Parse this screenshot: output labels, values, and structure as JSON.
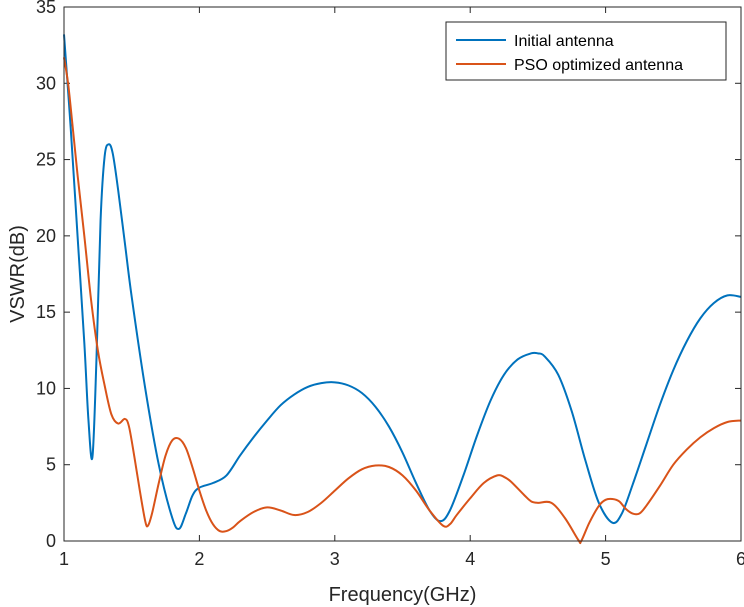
{
  "chart_data": {
    "type": "line",
    "title": "",
    "xlabel": "Frequency(GHz)",
    "ylabel": "VSWR(dB)",
    "xlim": [
      1,
      6
    ],
    "ylim": [
      0,
      35
    ],
    "xticks": [
      1,
      2,
      3,
      4,
      5,
      6
    ],
    "yticks": [
      0,
      5,
      10,
      15,
      20,
      25,
      30,
      35
    ],
    "grid": false,
    "legend_position": "top-right",
    "series": [
      {
        "name": "Initial antenna",
        "color": "#0072BD",
        "points": [
          [
            1.0,
            33.2
          ],
          [
            1.05,
            27.0
          ],
          [
            1.1,
            20.0
          ],
          [
            1.15,
            13.0
          ],
          [
            1.18,
            8.0
          ],
          [
            1.21,
            5.5
          ],
          [
            1.24,
            12.0
          ],
          [
            1.27,
            21.0
          ],
          [
            1.3,
            25.2
          ],
          [
            1.33,
            26.0
          ],
          [
            1.36,
            25.4
          ],
          [
            1.4,
            23.0
          ],
          [
            1.45,
            19.5
          ],
          [
            1.5,
            16.0
          ],
          [
            1.6,
            10.0
          ],
          [
            1.7,
            5.0
          ],
          [
            1.8,
            1.5
          ],
          [
            1.85,
            0.8
          ],
          [
            1.9,
            1.8
          ],
          [
            1.95,
            3.0
          ],
          [
            2.0,
            3.5
          ],
          [
            2.1,
            3.8
          ],
          [
            2.2,
            4.3
          ],
          [
            2.3,
            5.6
          ],
          [
            2.4,
            6.8
          ],
          [
            2.5,
            7.9
          ],
          [
            2.6,
            8.9
          ],
          [
            2.7,
            9.6
          ],
          [
            2.8,
            10.1
          ],
          [
            2.9,
            10.35
          ],
          [
            3.0,
            10.4
          ],
          [
            3.1,
            10.2
          ],
          [
            3.2,
            9.7
          ],
          [
            3.3,
            8.8
          ],
          [
            3.4,
            7.5
          ],
          [
            3.5,
            5.8
          ],
          [
            3.6,
            3.8
          ],
          [
            3.7,
            2.0
          ],
          [
            3.78,
            1.3
          ],
          [
            3.85,
            2.0
          ],
          [
            3.95,
            4.3
          ],
          [
            4.05,
            6.9
          ],
          [
            4.15,
            9.2
          ],
          [
            4.25,
            10.9
          ],
          [
            4.35,
            11.9
          ],
          [
            4.45,
            12.3
          ],
          [
            4.5,
            12.3
          ],
          [
            4.55,
            12.1
          ],
          [
            4.65,
            10.9
          ],
          [
            4.75,
            8.5
          ],
          [
            4.85,
            5.3
          ],
          [
            4.95,
            2.5
          ],
          [
            5.05,
            1.2
          ],
          [
            5.12,
            1.8
          ],
          [
            5.2,
            3.7
          ],
          [
            5.3,
            6.3
          ],
          [
            5.4,
            8.9
          ],
          [
            5.5,
            11.2
          ],
          [
            5.6,
            13.1
          ],
          [
            5.7,
            14.6
          ],
          [
            5.8,
            15.6
          ],
          [
            5.9,
            16.1
          ],
          [
            6.0,
            16.0
          ]
        ]
      },
      {
        "name": "PSO optimized antenna",
        "color": "#D95319",
        "points": [
          [
            1.0,
            31.7
          ],
          [
            1.03,
            30.0
          ],
          [
            1.06,
            27.5
          ],
          [
            1.1,
            24.0
          ],
          [
            1.15,
            20.0
          ],
          [
            1.2,
            15.8
          ],
          [
            1.25,
            12.5
          ],
          [
            1.3,
            10.2
          ],
          [
            1.35,
            8.3
          ],
          [
            1.4,
            7.7
          ],
          [
            1.45,
            8.0
          ],
          [
            1.48,
            7.5
          ],
          [
            1.52,
            5.5
          ],
          [
            1.56,
            3.3
          ],
          [
            1.6,
            1.3
          ],
          [
            1.62,
            1.0
          ],
          [
            1.65,
            1.8
          ],
          [
            1.7,
            3.8
          ],
          [
            1.75,
            5.6
          ],
          [
            1.8,
            6.6
          ],
          [
            1.85,
            6.7
          ],
          [
            1.9,
            6.1
          ],
          [
            1.95,
            4.8
          ],
          [
            2.0,
            3.3
          ],
          [
            2.05,
            2.0
          ],
          [
            2.1,
            1.1
          ],
          [
            2.15,
            0.65
          ],
          [
            2.2,
            0.65
          ],
          [
            2.25,
            0.9
          ],
          [
            2.3,
            1.3
          ],
          [
            2.4,
            1.9
          ],
          [
            2.5,
            2.2
          ],
          [
            2.6,
            2.0
          ],
          [
            2.7,
            1.7
          ],
          [
            2.8,
            1.9
          ],
          [
            2.9,
            2.5
          ],
          [
            3.0,
            3.3
          ],
          [
            3.1,
            4.1
          ],
          [
            3.2,
            4.7
          ],
          [
            3.3,
            4.95
          ],
          [
            3.4,
            4.85
          ],
          [
            3.5,
            4.3
          ],
          [
            3.6,
            3.3
          ],
          [
            3.7,
            2.0
          ],
          [
            3.8,
            1.0
          ],
          [
            3.85,
            1.1
          ],
          [
            3.9,
            1.7
          ],
          [
            4.0,
            2.8
          ],
          [
            4.1,
            3.8
          ],
          [
            4.2,
            4.3
          ],
          [
            4.25,
            4.2
          ],
          [
            4.3,
            3.9
          ],
          [
            4.4,
            3.0
          ],
          [
            4.45,
            2.6
          ],
          [
            4.5,
            2.5
          ],
          [
            4.6,
            2.5
          ],
          [
            4.7,
            1.5
          ],
          [
            4.8,
            0.05
          ],
          [
            4.82,
            0.0
          ],
          [
            4.88,
            1.2
          ],
          [
            4.95,
            2.3
          ],
          [
            5.0,
            2.7
          ],
          [
            5.05,
            2.75
          ],
          [
            5.1,
            2.6
          ],
          [
            5.15,
            2.1
          ],
          [
            5.2,
            1.8
          ],
          [
            5.25,
            1.8
          ],
          [
            5.3,
            2.3
          ],
          [
            5.4,
            3.6
          ],
          [
            5.5,
            5.0
          ],
          [
            5.6,
            6.0
          ],
          [
            5.7,
            6.8
          ],
          [
            5.8,
            7.4
          ],
          [
            5.9,
            7.8
          ],
          [
            6.0,
            7.9
          ]
        ]
      }
    ]
  }
}
